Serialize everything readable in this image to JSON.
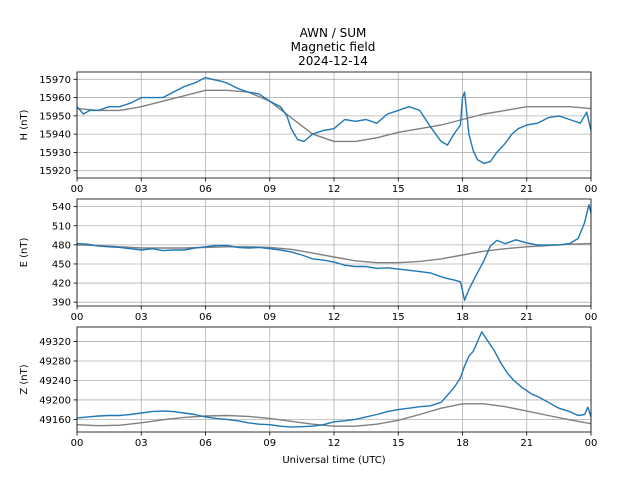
{
  "title": {
    "line1": "AWN / SUM",
    "line2": "Magnetic field",
    "line3": "2024-12-14"
  },
  "colors": {
    "data": "#1f77b4",
    "baseline": "#808080",
    "grid": "#b0b0b0"
  },
  "chart_data": [
    {
      "type": "line",
      "ylabel": "H (nT)",
      "xlabel": "",
      "xlim": [
        0,
        24
      ],
      "ylim": [
        15916,
        15974
      ],
      "xticks": [
        "00",
        "03",
        "06",
        "09",
        "12",
        "15",
        "18",
        "21",
        "00"
      ],
      "yticks": [
        15920,
        15930,
        15940,
        15950,
        15960,
        15970
      ],
      "grid": true,
      "series": [
        {
          "role": "measured",
          "x": [
            0,
            0.3,
            0.6,
            1.0,
            1.5,
            2.0,
            2.5,
            3.0,
            3.5,
            4.0,
            4.5,
            5.0,
            5.5,
            6.0,
            6.3,
            6.7,
            7.0,
            7.5,
            8.0,
            8.5,
            9.0,
            9.5,
            9.8,
            10.0,
            10.3,
            10.6,
            11.0,
            11.5,
            12.0,
            12.5,
            13.0,
            13.5,
            14.0,
            14.5,
            15.0,
            15.5,
            16.0,
            16.5,
            17.0,
            17.3,
            17.6,
            17.9,
            18.0,
            18.1,
            18.3,
            18.5,
            18.7,
            19.0,
            19.3,
            19.6,
            20.0,
            20.3,
            20.6,
            21.0,
            21.5,
            22.0,
            22.5,
            23.0,
            23.5,
            23.8,
            24.0
          ],
          "y": [
            15955,
            15951,
            15953,
            15953,
            15955,
            15955,
            15957,
            15960,
            15960,
            15960,
            15963,
            15966,
            15968,
            15971,
            15970,
            15969,
            15968,
            15965,
            15963,
            15962,
            15958,
            15955,
            15950,
            15943,
            15937,
            15936,
            15940,
            15942,
            15943,
            15948,
            15947,
            15948,
            15946,
            15951,
            15953,
            15955,
            15953,
            15944,
            15936,
            15934,
            15940,
            15945,
            15960,
            15963,
            15940,
            15931,
            15926,
            15924,
            15925,
            15930,
            15935,
            15940,
            15943,
            15945,
            15946,
            15949,
            15950,
            15948,
            15946,
            15952,
            15942
          ]
        },
        {
          "role": "baseline",
          "x": [
            0,
            1,
            2,
            3,
            4,
            5,
            6,
            7,
            8,
            9,
            10,
            11,
            12,
            13,
            14,
            15,
            16,
            17,
            18,
            19,
            20,
            21,
            22,
            23,
            24
          ],
          "y": [
            15954,
            15953,
            15953,
            15955,
            15958,
            15961,
            15964,
            15964,
            15963,
            15958,
            15949,
            15940,
            15936,
            15936,
            15938,
            15941,
            15943,
            15945,
            15948,
            15951,
            15953,
            15955,
            15955,
            15955,
            15954
          ]
        }
      ]
    },
    {
      "type": "line",
      "ylabel": "E (nT)",
      "xlabel": "",
      "xlim": [
        0,
        24
      ],
      "ylim": [
        384,
        552
      ],
      "xticks": [
        "00",
        "03",
        "06",
        "09",
        "12",
        "15",
        "18",
        "21",
        "00"
      ],
      "yticks": [
        390,
        420,
        450,
        480,
        510,
        540
      ],
      "grid": true,
      "series": [
        {
          "role": "measured",
          "x": [
            0,
            0.5,
            1.0,
            1.5,
            2.0,
            2.5,
            3.0,
            3.5,
            4.0,
            4.5,
            5.0,
            5.5,
            6.0,
            6.5,
            7.0,
            7.5,
            8.0,
            8.5,
            9.0,
            9.5,
            10.0,
            10.5,
            11.0,
            11.5,
            12.0,
            12.5,
            13.0,
            13.5,
            14.0,
            14.5,
            15.0,
            15.5,
            16.0,
            16.5,
            17.0,
            17.3,
            17.6,
            17.9,
            18.0,
            18.1,
            18.3,
            18.6,
            19.0,
            19.3,
            19.6,
            20.0,
            20.5,
            21.0,
            21.5,
            22.0,
            22.5,
            23.0,
            23.4,
            23.7,
            23.9,
            24.0
          ],
          "y": [
            482,
            481,
            478,
            477,
            476,
            474,
            472,
            474,
            471,
            472,
            472,
            475,
            477,
            479,
            479,
            476,
            475,
            476,
            474,
            472,
            469,
            464,
            458,
            456,
            453,
            448,
            446,
            446,
            443,
            444,
            442,
            440,
            438,
            436,
            430,
            427,
            425,
            422,
            408,
            393,
            410,
            430,
            455,
            478,
            487,
            482,
            488,
            483,
            480,
            480,
            480,
            482,
            490,
            515,
            543,
            530
          ]
        },
        {
          "role": "baseline",
          "x": [
            0,
            1,
            2,
            3,
            4,
            5,
            6,
            7,
            8,
            9,
            10,
            11,
            12,
            13,
            14,
            15,
            16,
            17,
            18,
            19,
            20,
            21,
            22,
            23,
            24
          ],
          "y": [
            480,
            479,
            477,
            475,
            475,
            475,
            476,
            477,
            477,
            476,
            473,
            467,
            461,
            455,
            452,
            452,
            454,
            458,
            464,
            470,
            474,
            477,
            479,
            481,
            482
          ]
        }
      ]
    },
    {
      "type": "line",
      "ylabel": "Z (nT)",
      "xlabel": "Universal time (UTC)",
      "xlim": [
        0,
        24
      ],
      "ylim": [
        49134,
        49350
      ],
      "xticks": [
        "00",
        "03",
        "06",
        "09",
        "12",
        "15",
        "18",
        "21",
        "00"
      ],
      "yticks": [
        49160,
        49200,
        49240,
        49280,
        49320
      ],
      "grid": true,
      "series": [
        {
          "role": "measured",
          "x": [
            0,
            0.5,
            1.0,
            1.5,
            2.0,
            2.5,
            3.0,
            3.5,
            4.0,
            4.5,
            5.0,
            5.5,
            6.0,
            6.5,
            7.0,
            7.5,
            8.0,
            8.5,
            9.0,
            9.5,
            10.0,
            10.5,
            11.0,
            11.5,
            12.0,
            12.5,
            13.0,
            13.5,
            14.0,
            14.5,
            15.0,
            15.5,
            16.0,
            16.5,
            17.0,
            17.3,
            17.6,
            17.9,
            18.1,
            18.3,
            18.5,
            18.7,
            18.9,
            19.2,
            19.5,
            19.8,
            20.1,
            20.4,
            20.8,
            21.2,
            21.6,
            22.0,
            22.5,
            23.0,
            23.4,
            23.7,
            23.85,
            24.0
          ],
          "y": [
            49163,
            49165,
            49167,
            49168,
            49168,
            49170,
            49173,
            49176,
            49177,
            49176,
            49173,
            49170,
            49165,
            49162,
            49160,
            49157,
            49153,
            49150,
            49149,
            49146,
            49144,
            49145,
            49146,
            49149,
            49155,
            49157,
            49160,
            49165,
            49170,
            49176,
            49180,
            49183,
            49186,
            49188,
            49195,
            49210,
            49225,
            49245,
            49270,
            49290,
            49300,
            49320,
            49340,
            49320,
            49300,
            49275,
            49255,
            49240,
            49225,
            49213,
            49205,
            49195,
            49183,
            49176,
            49168,
            49170,
            49185,
            49165
          ]
        },
        {
          "role": "baseline",
          "x": [
            0,
            1,
            2,
            3,
            4,
            5,
            6,
            7,
            8,
            9,
            10,
            11,
            12,
            13,
            14,
            15,
            16,
            17,
            18,
            19,
            20,
            21,
            22,
            23,
            24
          ],
          "y": [
            49149,
            49147,
            49148,
            49153,
            49159,
            49164,
            49167,
            49168,
            49166,
            49162,
            49156,
            49150,
            49146,
            49146,
            49150,
            49158,
            49170,
            49183,
            49192,
            49192,
            49186,
            49177,
            49168,
            49159,
            49151
          ]
        }
      ]
    }
  ]
}
